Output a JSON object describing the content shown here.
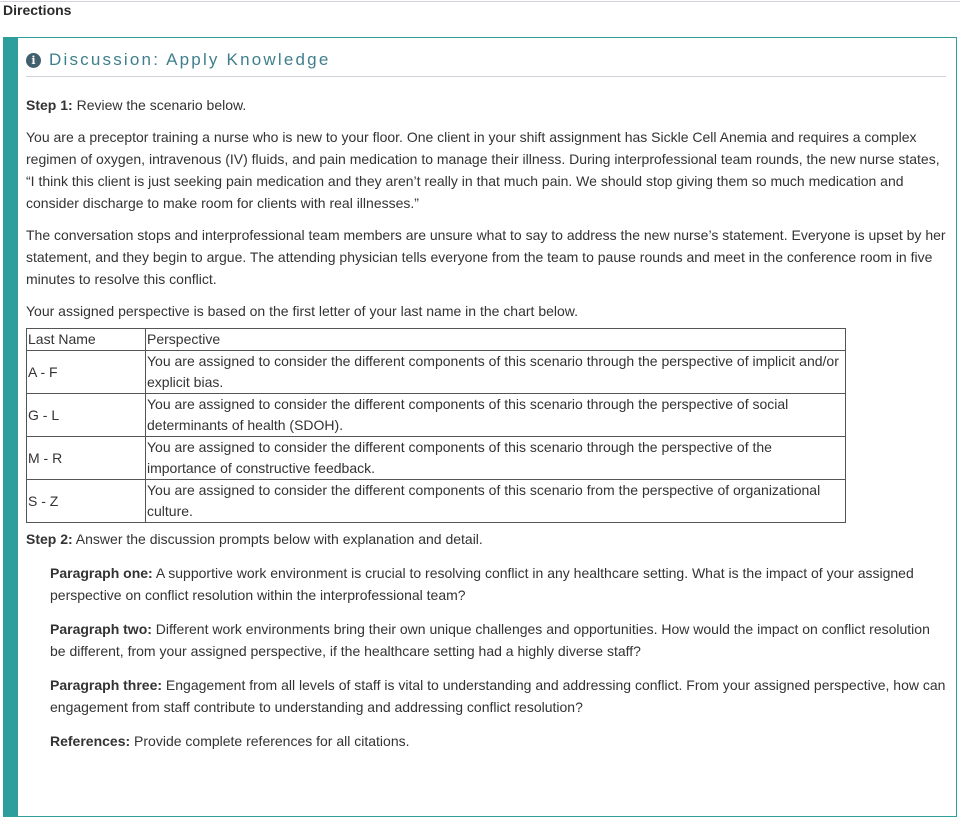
{
  "header": {
    "title": "Directions"
  },
  "panel": {
    "icon": "info-circle-icon",
    "title": "Discussion: Apply Knowledge",
    "step1": {
      "label": "Step 1:",
      "text": " Review the scenario below."
    },
    "paragraphs": [
      "You are a preceptor training a nurse who is new to your floor. One client in your shift assignment has Sickle Cell Anemia and requires a complex regimen of oxygen, intravenous (IV) fluids, and pain medication to manage their illness. During interprofessional team rounds, the new nurse states, “I think this client is just seeking pain medication and they aren’t really in that much pain. We should stop giving them so much medication and consider discharge to make room for clients with real illnesses.”",
      "The conversation stops and interprofessional team members are unsure what to say to address the new nurse’s statement. Everyone is upset by her statement, and they begin to argue. The attending physician tells everyone from the team to pause rounds and meet in the conference room in five minutes to resolve this conflict.",
      "Your assigned perspective is based on the first letter of your last name in the chart below."
    ],
    "table": {
      "headers": [
        "Last Name",
        "Perspective"
      ],
      "rows": [
        [
          "A - F",
          "You are assigned to consider the different components of this scenario through the perspective of implicit and/or explicit bias."
        ],
        [
          "G - L",
          "You are assigned to consider the different components of this scenario through the perspective of social determinants of health (SDOH)."
        ],
        [
          "M - R",
          "You are assigned to consider the different components of this scenario through the perspective of the importance of constructive feedback."
        ],
        [
          "S - Z",
          "You are assigned to consider the different components of this scenario from the perspective of organizational culture."
        ]
      ]
    },
    "step2": {
      "label": "Step 2:",
      "text": " Answer the discussion prompts below with explanation and detail."
    },
    "prompts": [
      {
        "label": "Paragraph one:",
        "text": " A supportive work environment is crucial to resolving conflict in any healthcare setting. What is the impact of your assigned perspective on conflict resolution within the interprofessional team?"
      },
      {
        "label": "Paragraph two:",
        "text": " Different work environments bring their own unique challenges and opportunities. How would the impact on conflict resolution be different, from your assigned perspective, if the healthcare setting had a highly diverse staff?"
      },
      {
        "label": "Paragraph three:",
        "text": " Engagement from all levels of staff is vital to understanding and addressing conflict. From your assigned perspective, how can engagement from staff contribute to understanding and addressing conflict resolution?"
      },
      {
        "label": "References:",
        "text": " Provide complete references for all citations."
      }
    ]
  }
}
